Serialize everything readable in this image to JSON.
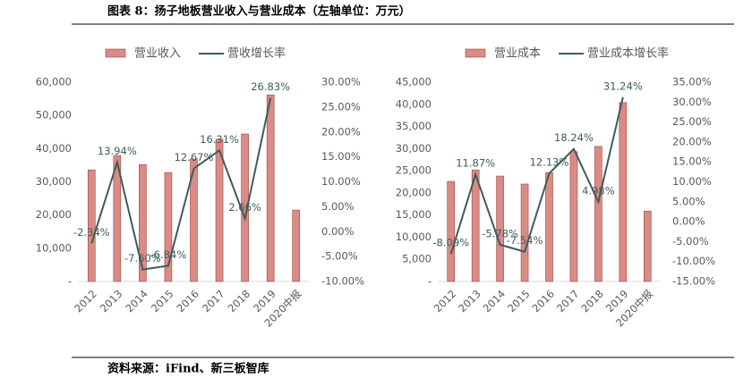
{
  "header": {
    "title": "图表 8：扬子地板营业收入与营业成本（左轴单位：万元）"
  },
  "source": "资料来源：iFind、新三板智库",
  "chart_data": [
    {
      "type": "bar-line",
      "categories": [
        "2012",
        "2013",
        "2014",
        "2015",
        "2016",
        "2017",
        "2018",
        "2019",
        "2020中报"
      ],
      "series": [
        {
          "name": "营业收入",
          "type": "bar",
          "color": "#d98b86",
          "values": [
            33600,
            37900,
            35200,
            32800,
            36900,
            42800,
            44400,
            56200,
            21500
          ]
        },
        {
          "name": "营收增长率",
          "type": "line",
          "axis": "y2",
          "color": "#3f5b5c",
          "values": [
            -2.34,
            13.94,
            -7.6,
            -6.84,
            12.67,
            16.31,
            2.66,
            26.83,
            null
          ],
          "value_labels": [
            "-2.34%",
            "13.94%",
            "-7.60%",
            "-6.84%",
            "12.67%",
            "16.31%",
            "2.66%",
            "26.83%",
            null
          ]
        }
      ],
      "ylim": [
        0,
        60000
      ],
      "yticks": [
        {
          "value": 0,
          "label": "-"
        },
        {
          "value": 10000,
          "label": "10,000"
        },
        {
          "value": 20000,
          "label": "20,000"
        },
        {
          "value": 30000,
          "label": "30,000"
        },
        {
          "value": 40000,
          "label": "40,000"
        },
        {
          "value": 50000,
          "label": "50,000"
        },
        {
          "value": 60000,
          "label": "60,000"
        }
      ],
      "y2lim": [
        -10,
        30
      ],
      "y2ticks": [
        {
          "value": -10,
          "label": "-10.00%"
        },
        {
          "value": -5,
          "label": "-5.00%"
        },
        {
          "value": 0,
          "label": "0.00%"
        },
        {
          "value": 5,
          "label": "5.00%"
        },
        {
          "value": 10,
          "label": "10.00%"
        },
        {
          "value": 15,
          "label": "15.00%"
        },
        {
          "value": 20,
          "label": "20.00%"
        },
        {
          "value": 25,
          "label": "25.00%"
        },
        {
          "value": 30,
          "label": "30.00%"
        }
      ]
    },
    {
      "type": "bar-line",
      "categories": [
        "2012",
        "2013",
        "2014",
        "2015",
        "2016",
        "2017",
        "2018",
        "2019",
        "2020中报"
      ],
      "series": [
        {
          "name": "营业成本",
          "type": "bar",
          "color": "#d98b86",
          "values": [
            22600,
            25200,
            23800,
            22000,
            24600,
            29300,
            30500,
            40400,
            15900
          ]
        },
        {
          "name": "营业成本增长率",
          "type": "line",
          "axis": "y2",
          "color": "#3f5b5c",
          "values": [
            -8.09,
            11.87,
            -5.78,
            -7.54,
            12.13,
            18.24,
            4.98,
            31.24,
            null
          ],
          "value_labels": [
            "-8.09%",
            "11.87%",
            "-5.78%",
            "-7.54%",
            "12.13%",
            "18.24%",
            "4.98%",
            "31.24%",
            null
          ]
        }
      ],
      "ylim": [
        0,
        45000
      ],
      "yticks": [
        {
          "value": 0,
          "label": "-"
        },
        {
          "value": 5000,
          "label": "5,000"
        },
        {
          "value": 10000,
          "label": "10,000"
        },
        {
          "value": 15000,
          "label": "15,000"
        },
        {
          "value": 20000,
          "label": "20,000"
        },
        {
          "value": 25000,
          "label": "25,000"
        },
        {
          "value": 30000,
          "label": "30,000"
        },
        {
          "value": 35000,
          "label": "35,000"
        },
        {
          "value": 40000,
          "label": "40,000"
        },
        {
          "value": 45000,
          "label": "45,000"
        }
      ],
      "y2lim": [
        -15,
        35
      ],
      "y2ticks": [
        {
          "value": -15,
          "label": "-15.00%"
        },
        {
          "value": -10,
          "label": "-10.00%"
        },
        {
          "value": -5,
          "label": "-5.00%"
        },
        {
          "value": 0,
          "label": "0.00%"
        },
        {
          "value": 5,
          "label": "5.00%"
        },
        {
          "value": 10,
          "label": "10.00%"
        },
        {
          "value": 15,
          "label": "15.00%"
        },
        {
          "value": 20,
          "label": "20.00%"
        },
        {
          "value": 25,
          "label": "25.00%"
        },
        {
          "value": 30,
          "label": "30.00%"
        },
        {
          "value": 35,
          "label": "35.00%"
        }
      ]
    }
  ]
}
